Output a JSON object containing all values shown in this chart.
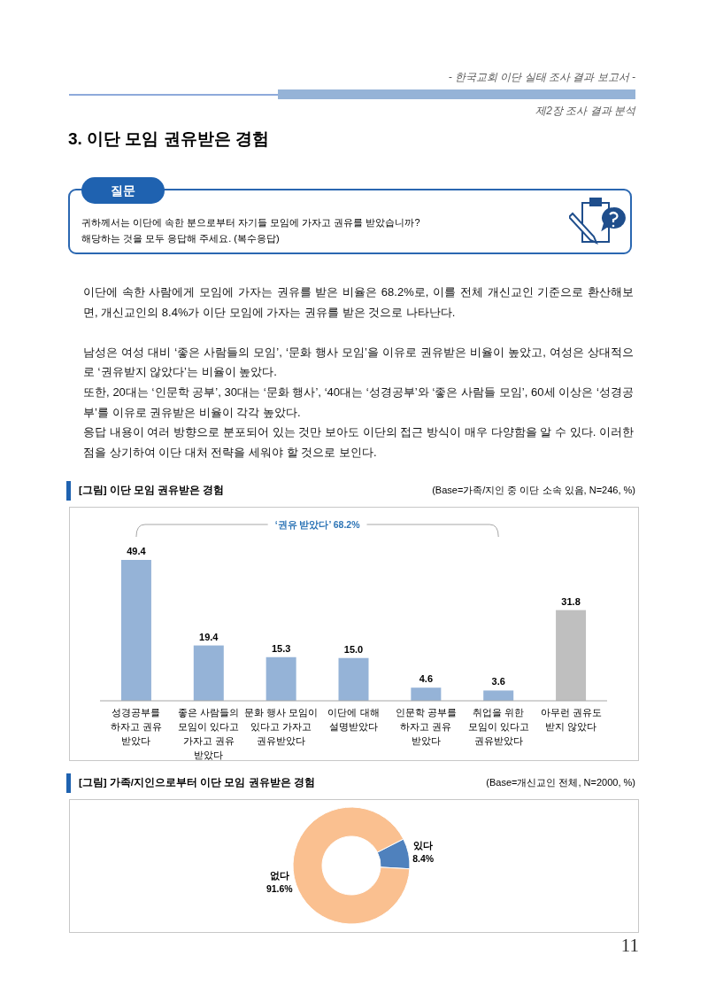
{
  "chart_data": [
    {
      "type": "other",
      "title": "3. 이단 모임 권유받은 경험",
      "annotations": [
        "- 한국교회 이단 실태 조사 결과 보고서 -",
        "제2장 조사 결과 분석",
        "질문",
        "귀하께서는 이단에 속한 분으로부터 자기들 모임에 가자고 권유를 받았습니까?",
        "해당하는 것을 모두 응답해 주세요. (복수응답)",
        "이단에 속한 사람에게 모임에 가자는 권유를 받은 비율은 68.2%로, 이를 전체 개신교인 기준으로 환산해보면, 개신교인의 8.4%가 이단 모임에 가자는 권유를 받은 것으로 나타난다.",
        "남성은 여성 대비 ‘좋은 사람들의 모임’, ‘문화 행사 모임’을 이유로 권유받은 비율이 높았고, 여성은 상대적으로 ‘권유받지 않았다’는 비율이 높았다.",
        "또한, 20대는 ‘인문학 공부’, 30대는 ‘문화 행사’, ‘40대는 ‘성경공부’와 ‘좋은 사람들 모임’, 60세 이상은 ‘성경공부’를 이유로 권유받은 비율이 각각 높았다.",
        "응답 내용이 여러 방향으로 분포되어 있는 것만 보아도 이단의 접근 방식이 매우 다양함을 알 수 있다. 이러한 점을 상기하여 이단 대처 전략을 세워야 할 것으로 보인다.",
        "11"
      ]
    },
    {
      "type": "bar",
      "title": "[그림] 이단 모임 권유받은 경험",
      "subtitle": "(Base=가족/지인 중 이단 소속 있음, N=246, %)",
      "categories": [
        "성경공부를\n하자고 권유\n받았다",
        "좋은 사람들의\n모임이 있다고\n가자고 권유\n받았다",
        "문화 행사 모임이\n있다고 가자고\n권유받았다",
        "이단에 대해\n설명받았다",
        "인문학 공부를\n하자고 권유\n받았다",
        "취업을 위한\n모임이 있다고\n권유받았다",
        "아무런 권유도\n받지 않았다"
      ],
      "values": [
        49.4,
        19.4,
        15.3,
        15.0,
        4.6,
        3.6,
        31.8
      ],
      "colors": [
        "#95b3d7",
        "#95b3d7",
        "#95b3d7",
        "#95b3d7",
        "#95b3d7",
        "#95b3d7",
        "#bfbfbf"
      ],
      "value_labels": [
        "49.4",
        "19.4",
        "15.3",
        "15.0",
        "4.6",
        "3.6",
        "31.8"
      ],
      "annotations": [
        "‘권유 받았다’ 68.2%"
      ]
    },
    {
      "type": "donut",
      "title": "[그림] 가족/지인으로부터 이단 모임 권유받은 경험",
      "subtitle": "(Base=개신교인 전체, N=2000, %)",
      "categories": [
        "있다",
        "없다"
      ],
      "values": [
        8.4,
        91.6
      ],
      "colors": [
        "#4f81bd",
        "#fac090"
      ],
      "value_labels": [
        "8.4%",
        "91.6%"
      ]
    }
  ]
}
